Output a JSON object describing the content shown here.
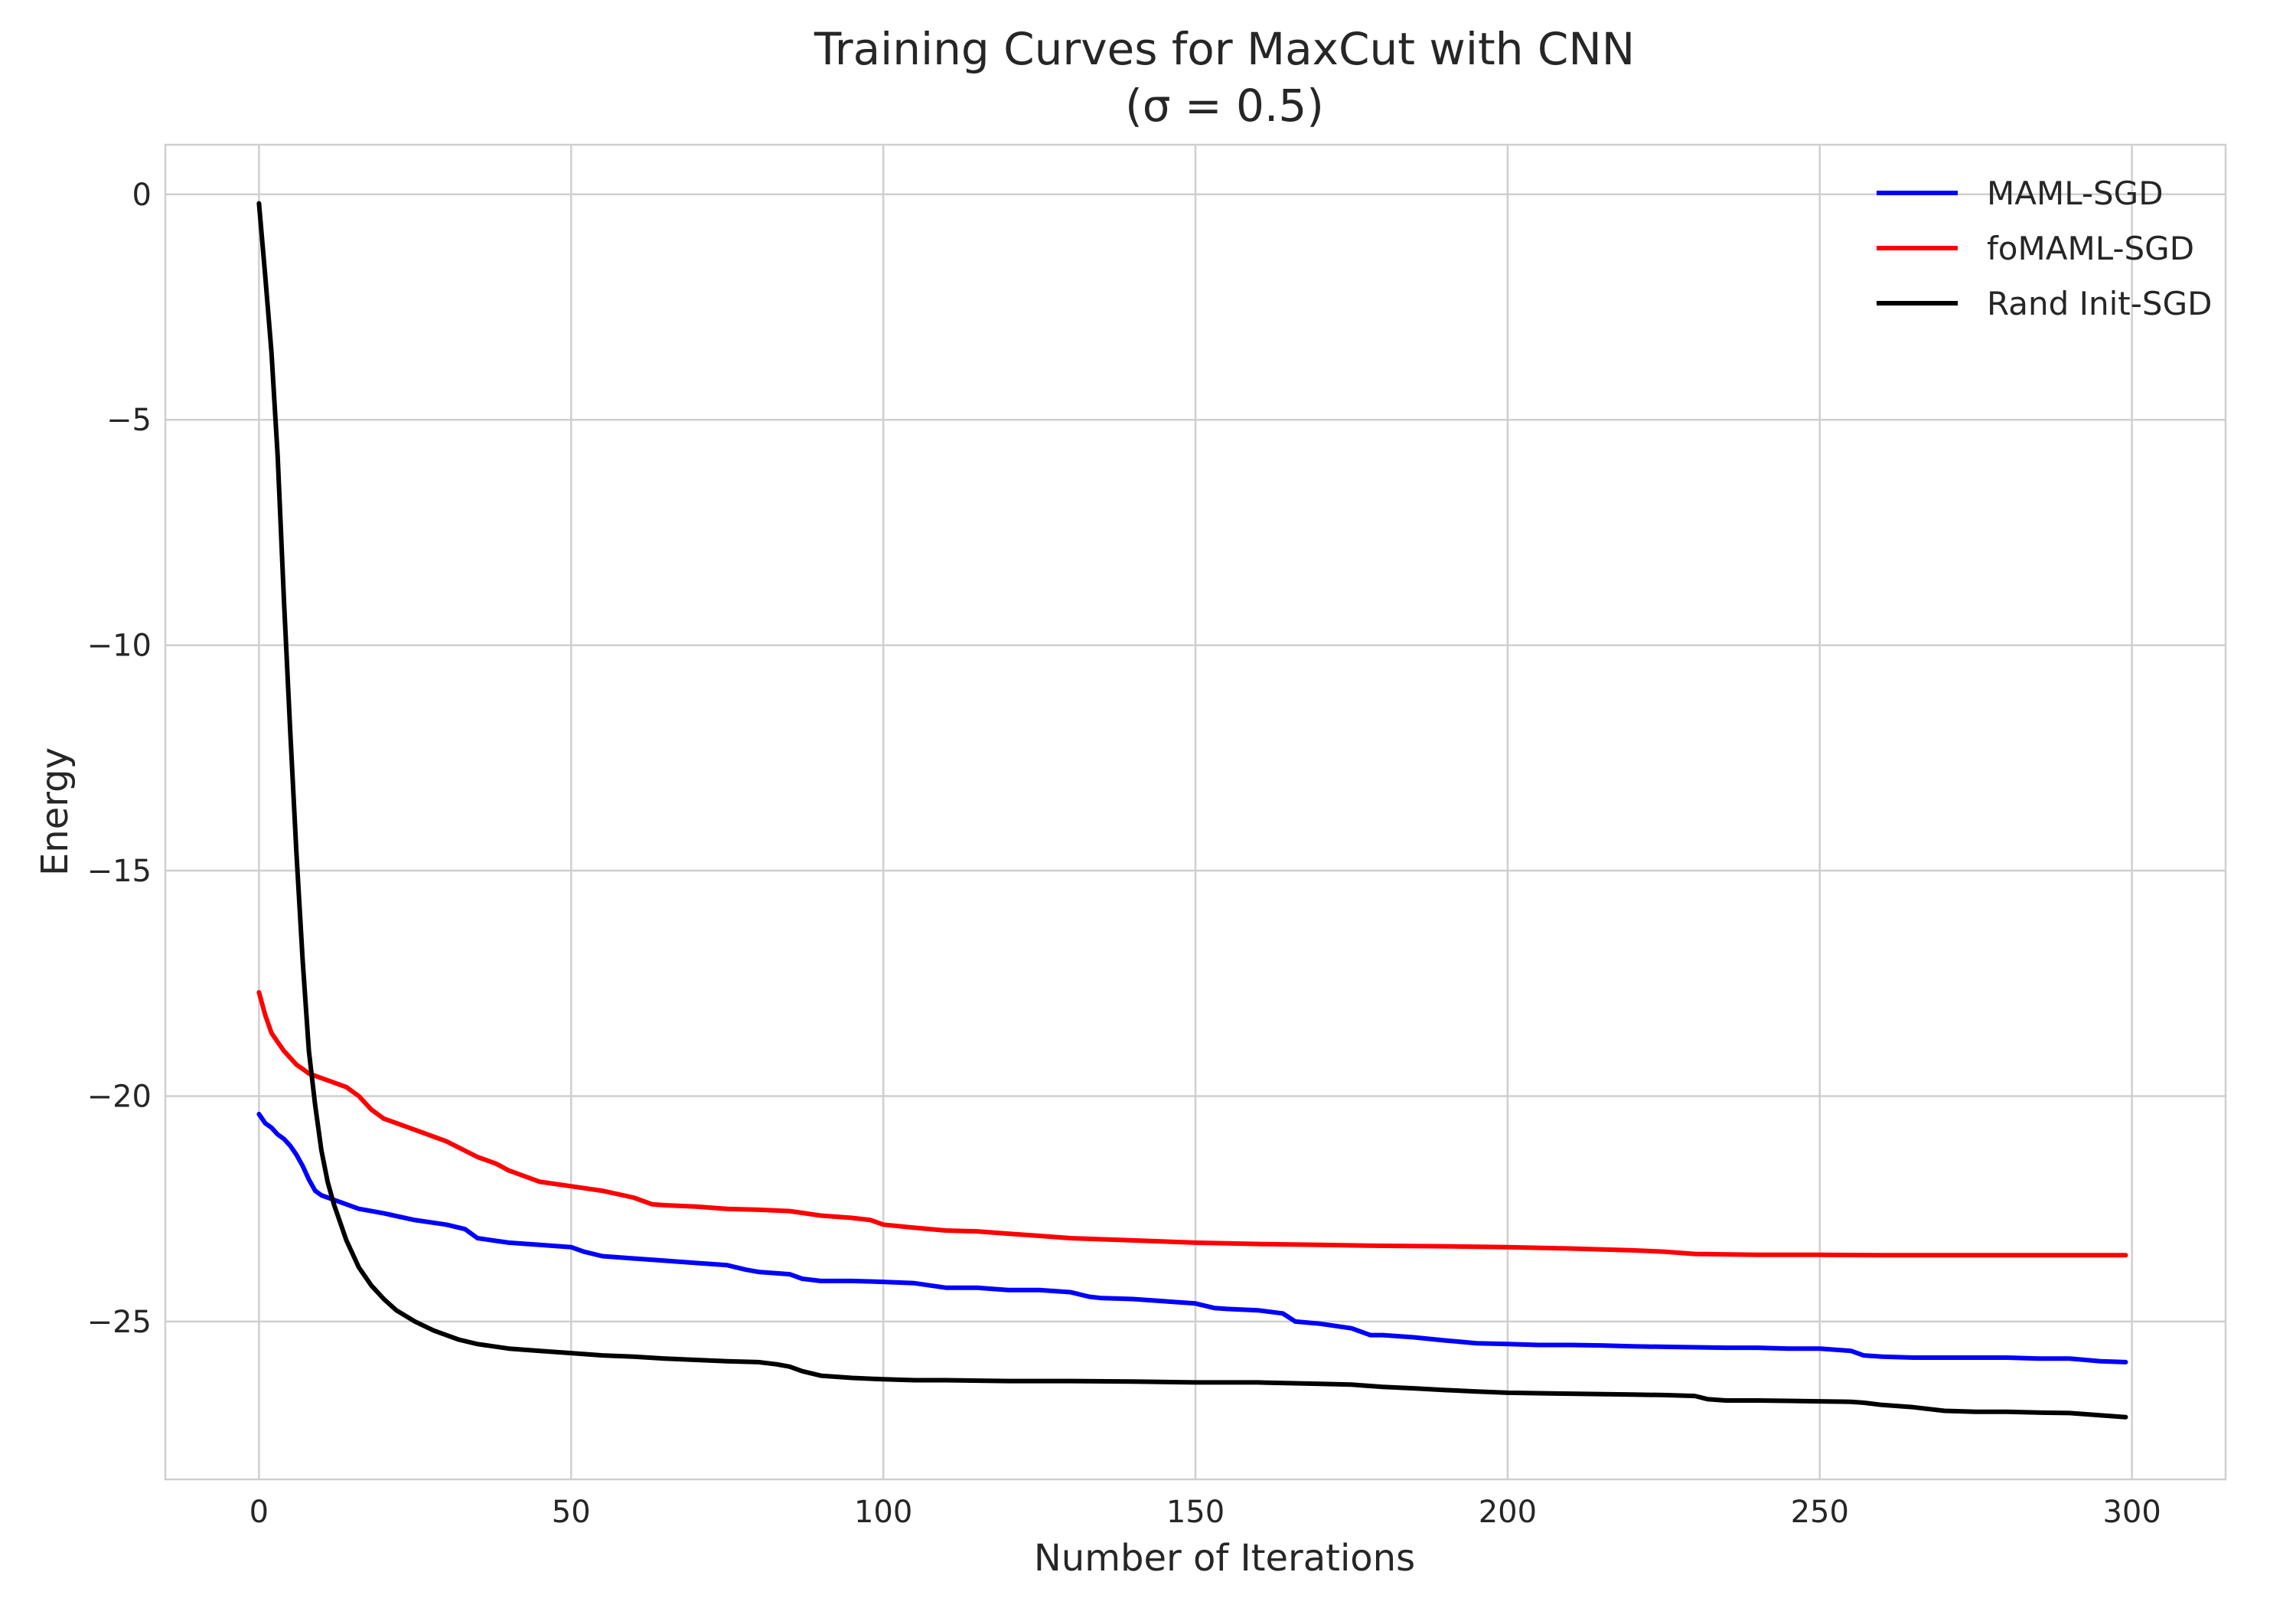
{
  "chart_data": {
    "type": "line",
    "title": "Training Curves for MaxCut with CNN",
    "subtitle": "(σ = 0.5)",
    "xlabel": "Number of Iterations",
    "ylabel": "Energy",
    "xlim": [
      -15,
      315
    ],
    "ylim": [
      -28.5,
      1.1
    ],
    "xticks": [
      0,
      50,
      100,
      150,
      200,
      250,
      300
    ],
    "xtick_labels": [
      "0",
      "50",
      "100",
      "150",
      "200",
      "250",
      "300"
    ],
    "yticks": [
      0,
      -5,
      -10,
      -15,
      -20,
      -25
    ],
    "ytick_labels": [
      "0",
      "−5",
      "−10",
      "−15",
      "−20",
      "−25"
    ],
    "grid": true,
    "legend_position": "top-right",
    "series": [
      {
        "name": "MAML-SGD",
        "color": "#0000ff",
        "x": [
          0,
          1,
          2,
          3,
          4,
          5,
          6,
          7,
          8,
          9,
          10,
          12,
          14,
          16,
          18,
          20,
          25,
          30,
          33,
          35,
          40,
          45,
          50,
          52,
          55,
          60,
          65,
          70,
          75,
          78,
          80,
          85,
          87,
          90,
          95,
          100,
          105,
          110,
          115,
          120,
          125,
          130,
          133,
          135,
          140,
          145,
          150,
          153,
          155,
          160,
          164,
          166,
          170,
          175,
          178,
          180,
          185,
          190,
          195,
          200,
          205,
          210,
          215,
          220,
          225,
          230,
          235,
          240,
          245,
          250,
          255,
          257,
          260,
          265,
          270,
          275,
          280,
          285,
          290,
          295,
          299
        ],
        "y": [
          -20.4,
          -20.6,
          -20.7,
          -20.85,
          -20.95,
          -21.1,
          -21.3,
          -21.55,
          -21.85,
          -22.1,
          -22.2,
          -22.3,
          -22.4,
          -22.5,
          -22.55,
          -22.6,
          -22.75,
          -22.85,
          -22.95,
          -23.15,
          -23.25,
          -23.3,
          -23.35,
          -23.45,
          -23.55,
          -23.6,
          -23.65,
          -23.7,
          -23.75,
          -23.85,
          -23.9,
          -23.95,
          -24.05,
          -24.1,
          -24.1,
          -24.12,
          -24.15,
          -24.25,
          -24.25,
          -24.3,
          -24.3,
          -24.35,
          -24.45,
          -24.48,
          -24.5,
          -24.55,
          -24.6,
          -24.7,
          -24.72,
          -24.75,
          -24.82,
          -25.0,
          -25.05,
          -25.15,
          -25.3,
          -25.3,
          -25.35,
          -25.42,
          -25.48,
          -25.5,
          -25.52,
          -25.52,
          -25.53,
          -25.55,
          -25.56,
          -25.57,
          -25.58,
          -25.58,
          -25.6,
          -25.6,
          -25.65,
          -25.75,
          -25.78,
          -25.8,
          -25.8,
          -25.8,
          -25.8,
          -25.82,
          -25.82,
          -25.88,
          -25.9
        ]
      },
      {
        "name": "foMAML-SGD",
        "color": "#ff0000",
        "x": [
          0,
          1,
          2,
          3,
          4,
          5,
          6,
          7,
          8,
          10,
          12,
          14,
          16,
          18,
          20,
          25,
          30,
          35,
          38,
          40,
          45,
          50,
          55,
          60,
          63,
          65,
          70,
          75,
          80,
          85,
          90,
          95,
          98,
          100,
          105,
          110,
          115,
          120,
          125,
          130,
          140,
          150,
          160,
          170,
          180,
          190,
          200,
          210,
          220,
          225,
          230,
          240,
          250,
          260,
          270,
          280,
          290,
          299
        ],
        "y": [
          -17.7,
          -18.2,
          -18.6,
          -18.8,
          -19.0,
          -19.15,
          -19.3,
          -19.4,
          -19.5,
          -19.6,
          -19.7,
          -19.8,
          -20.0,
          -20.3,
          -20.5,
          -20.75,
          -21.0,
          -21.35,
          -21.5,
          -21.65,
          -21.9,
          -22.0,
          -22.1,
          -22.25,
          -22.4,
          -22.42,
          -22.45,
          -22.5,
          -22.52,
          -22.55,
          -22.65,
          -22.7,
          -22.75,
          -22.85,
          -22.92,
          -22.98,
          -23.0,
          -23.05,
          -23.1,
          -23.15,
          -23.2,
          -23.25,
          -23.28,
          -23.3,
          -23.32,
          -23.33,
          -23.35,
          -23.38,
          -23.42,
          -23.45,
          -23.5,
          -23.52,
          -23.52,
          -23.53,
          -23.53,
          -23.53,
          -23.53,
          -23.53
        ]
      },
      {
        "name": "Rand Init-SGD",
        "color": "#000000",
        "x": [
          0,
          1,
          2,
          3,
          4,
          5,
          6,
          7,
          8,
          9,
          10,
          11,
          12,
          14,
          16,
          18,
          20,
          22,
          25,
          28,
          30,
          32,
          35,
          40,
          45,
          50,
          55,
          60,
          65,
          70,
          75,
          80,
          83,
          85,
          87,
          90,
          95,
          100,
          105,
          110,
          120,
          130,
          140,
          150,
          160,
          170,
          175,
          180,
          185,
          190,
          195,
          200,
          210,
          220,
          225,
          230,
          232,
          235,
          240,
          245,
          250,
          255,
          257,
          260,
          265,
          270,
          275,
          280,
          285,
          290,
          295,
          299
        ],
        "y": [
          -0.2,
          -1.8,
          -3.5,
          -5.8,
          -9.0,
          -11.9,
          -14.6,
          -17.0,
          -19.0,
          -20.2,
          -21.2,
          -21.9,
          -22.4,
          -23.2,
          -23.8,
          -24.2,
          -24.5,
          -24.75,
          -25.0,
          -25.2,
          -25.3,
          -25.4,
          -25.5,
          -25.6,
          -25.65,
          -25.7,
          -25.75,
          -25.78,
          -25.82,
          -25.85,
          -25.88,
          -25.9,
          -25.95,
          -26.0,
          -26.1,
          -26.2,
          -26.25,
          -26.28,
          -26.3,
          -26.3,
          -26.32,
          -26.32,
          -26.33,
          -26.35,
          -26.35,
          -26.38,
          -26.4,
          -26.45,
          -26.48,
          -26.52,
          -26.55,
          -26.58,
          -26.6,
          -26.62,
          -26.63,
          -26.65,
          -26.72,
          -26.75,
          -26.75,
          -26.76,
          -26.77,
          -26.78,
          -26.8,
          -26.85,
          -26.9,
          -26.98,
          -27.0,
          -27.0,
          -27.02,
          -27.03,
          -27.08,
          -27.12
        ]
      }
    ]
  }
}
